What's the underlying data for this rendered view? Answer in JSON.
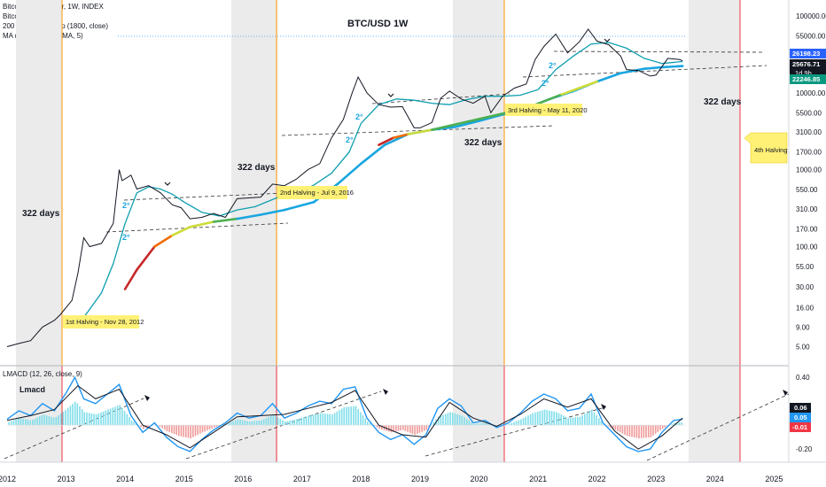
{
  "legend": {
    "line1": "Bitcoin / U.S. Dollar, 1W, INDEX",
    "line2": "Bitcoin Halvings",
    "line3": "200 Week Heatmap (1800, close)",
    "line4": "MA (50, close, 0, SMA, 5)"
  },
  "chart_data": [
    {
      "type": "line",
      "title": "BTC/USD 1W",
      "scale": "log",
      "y_ticks": [
        "100000.00",
        "55000.00",
        "31000.00",
        "17000.00",
        "10000.00",
        "5500.00",
        "3100.00",
        "1700.00",
        "1000.00",
        "550.00",
        "310.00",
        "170.00",
        "100.00",
        "55.00",
        "30.00",
        "16.00",
        "9.00",
        "5.00"
      ],
      "x_ticks": [
        "2012",
        "2013",
        "2014",
        "2015",
        "2016",
        "2017",
        "2018",
        "2019",
        "2020",
        "2021",
        "2022",
        "2023",
        "2024",
        "2025"
      ],
      "ylim": [
        3.5,
        130000
      ],
      "xlim": [
        2012.0,
        2025.1
      ],
      "price_labels": [
        {
          "value": "26198.23",
          "color": "#2962ff"
        },
        {
          "value": "25676.71",
          "color": "#ffffff"
        },
        {
          "value": "1d 9h",
          "color": "#ffffff"
        },
        {
          "value": "22246.85",
          "color": "#089981"
        }
      ],
      "series": [
        {
          "x": [
            2012.0,
            2012.2,
            2012.4,
            2012.6,
            2012.8,
            2012.9,
            2013.1,
            2013.2,
            2013.3,
            2013.4,
            2013.6,
            2013.8,
            2013.9,
            2013.95,
            2014.1,
            2014.2,
            2014.4,
            2014.6,
            2014.8,
            2014.95,
            2015.1,
            2015.3,
            2015.5,
            2015.7,
            2015.9,
            2016.1,
            2016.3,
            2016.5,
            2016.7,
            2016.9,
            2017.1,
            2017.3,
            2017.5,
            2017.7,
            2017.85,
            2017.95,
            2018.1,
            2018.3,
            2018.5,
            2018.7,
            2018.9,
            2019.0,
            2019.2,
            2019.35,
            2019.5,
            2019.7,
            2019.9,
            2020.1,
            2020.2,
            2020.4,
            2020.6,
            2020.8,
            2020.95,
            2021.1,
            2021.3,
            2021.5,
            2021.7,
            2021.85,
            2022.0,
            2022.2,
            2022.4,
            2022.5,
            2022.7,
            2022.9,
            2023.0,
            2023.2,
            2023.4,
            2023.45
          ],
          "values": [
            5,
            5.5,
            6,
            9,
            11,
            13,
            20,
            45,
            130,
            100,
            110,
            200,
            1000,
            720,
            850,
            560,
            620,
            500,
            350,
            320,
            230,
            240,
            270,
            240,
            420,
            430,
            440,
            650,
            620,
            750,
            1000,
            1200,
            2600,
            4500,
            10000,
            16000,
            10000,
            7000,
            6500,
            6600,
            3500,
            3500,
            4100,
            8500,
            10500,
            8300,
            7300,
            9000,
            5500,
            9000,
            11500,
            13000,
            27000,
            40000,
            58000,
            33000,
            46000,
            67000,
            47000,
            42000,
            30000,
            20000,
            19500,
            16500,
            17000,
            28000,
            27000,
            26000
          ]
        },
        {
          "name": "MA (50, close, 0, SMA, 5)",
          "x": [
            2013.0,
            2013.3,
            2013.6,
            2013.8,
            2014.0,
            2014.2,
            2014.4,
            2014.6,
            2014.8,
            2015.0,
            2015.3,
            2015.6,
            2015.9,
            2016.2,
            2016.6,
            2016.9,
            2017.2,
            2017.5,
            2017.8,
            2018.0,
            2018.3,
            2018.6,
            2018.9,
            2019.2,
            2019.5,
            2019.8,
            2020.1,
            2020.4,
            2020.7,
            2021.0,
            2021.3,
            2021.6,
            2021.9,
            2022.2,
            2022.5,
            2022.8,
            2023.1,
            2023.45
          ],
          "values": [
            9,
            12,
            25,
            60,
            200,
            500,
            600,
            560,
            480,
            380,
            280,
            250,
            300,
            330,
            440,
            500,
            630,
            900,
            1700,
            4000,
            7000,
            8300,
            8000,
            7300,
            7000,
            8200,
            9000,
            9000,
            9300,
            11000,
            20000,
            30000,
            43000,
            45000,
            38000,
            28000,
            24000,
            25500
          ]
        },
        {
          "name": "200 Week Heatmap (1800, close)",
          "x": [
            2014.0,
            2014.2,
            2014.5,
            2014.8,
            2015.1,
            2015.5,
            2015.9,
            2016.3,
            2016.7,
            2017.2,
            2017.6,
            2018.0,
            2018.4,
            2018.8,
            2019.2,
            2019.6,
            2020.0,
            2020.4,
            2020.8,
            2021.2,
            2021.6,
            2022.0,
            2022.4,
            2022.8,
            2023.1,
            2023.45
          ],
          "values": [
            28,
            50,
            100,
            140,
            180,
            210,
            230,
            260,
            300,
            380,
            650,
            1200,
            2100,
            2900,
            3300,
            3600,
            4300,
            5200,
            6300,
            8300,
            10500,
            14000,
            18000,
            20500,
            21500,
            22250
          ]
        }
      ]
    },
    {
      "type": "line",
      "title": "Lmacd",
      "legend": "LMACD (12, 26, close, 9)",
      "y_ticks": [
        "0.40",
        "0.20",
        "0.06",
        "0.05",
        "-0.01",
        "-0.20"
      ],
      "ylim": [
        -0.28,
        0.46
      ],
      "value_labels": [
        {
          "value": "0.06",
          "color": "#131722"
        },
        {
          "value": "0.05",
          "color": "#2196f3"
        },
        {
          "value": "-0.01",
          "color": "#f23645"
        }
      ],
      "series": [
        {
          "name": "LMACD",
          "x": [
            2012.0,
            2012.2,
            2012.4,
            2012.6,
            2012.8,
            2013.0,
            2013.15,
            2013.3,
            2013.5,
            2013.7,
            2013.9,
            2014.1,
            2014.3,
            2014.5,
            2014.7,
            2014.9,
            2015.1,
            2015.3,
            2015.5,
            2015.7,
            2015.9,
            2016.1,
            2016.3,
            2016.5,
            2016.7,
            2016.9,
            2017.1,
            2017.3,
            2017.5,
            2017.7,
            2017.9,
            2018.1,
            2018.3,
            2018.5,
            2018.7,
            2018.9,
            2019.1,
            2019.3,
            2019.5,
            2019.7,
            2019.9,
            2020.1,
            2020.3,
            2020.5,
            2020.7,
            2020.9,
            2021.1,
            2021.3,
            2021.5,
            2021.7,
            2021.9,
            2022.1,
            2022.3,
            2022.5,
            2022.7,
            2022.9,
            2023.1,
            2023.3,
            2023.45
          ],
          "values": [
            0.05,
            0.12,
            0.08,
            0.18,
            0.12,
            0.27,
            0.4,
            0.22,
            0.18,
            0.26,
            0.34,
            0.08,
            -0.06,
            0.02,
            -0.1,
            -0.18,
            -0.22,
            -0.12,
            -0.04,
            0.02,
            0.1,
            0.06,
            0.08,
            0.18,
            0.06,
            0.1,
            0.16,
            0.2,
            0.18,
            0.3,
            0.32,
            0.06,
            -0.06,
            -0.12,
            -0.08,
            -0.16,
            -0.08,
            0.14,
            0.22,
            0.16,
            0.02,
            0.04,
            -0.02,
            0.02,
            0.1,
            0.2,
            0.26,
            0.22,
            0.12,
            0.14,
            0.26,
            0.02,
            -0.08,
            -0.18,
            -0.22,
            -0.2,
            -0.06,
            0.04,
            0.05
          ]
        },
        {
          "name": "Signal",
          "x": [
            2012.0,
            2012.4,
            2012.8,
            2013.2,
            2013.5,
            2013.9,
            2014.3,
            2014.7,
            2015.1,
            2015.5,
            2015.9,
            2016.3,
            2016.7,
            2017.1,
            2017.5,
            2017.9,
            2018.3,
            2018.7,
            2019.1,
            2019.5,
            2019.9,
            2020.3,
            2020.7,
            2021.1,
            2021.5,
            2021.9,
            2022.3,
            2022.7,
            2023.1,
            2023.45
          ],
          "values": [
            0.04,
            0.08,
            0.13,
            0.33,
            0.22,
            0.3,
            0.0,
            -0.08,
            -0.19,
            -0.06,
            0.07,
            0.08,
            0.09,
            0.14,
            0.19,
            0.29,
            0.0,
            -0.08,
            -0.1,
            0.19,
            0.06,
            -0.01,
            0.09,
            0.22,
            0.15,
            0.22,
            -0.05,
            -0.2,
            -0.09,
            0.06
          ]
        }
      ]
    }
  ],
  "annotations": {
    "days_1": "322 days",
    "days_2": "322 days",
    "days_3": "322 days",
    "days_4": "322 days",
    "halving_1": "1st Halving - Nov 28, 2012",
    "halving_2": "2nd Halving - Jul 9, 2016",
    "halving_3": "3rd Halving - May 11, 2020",
    "halving_4": "4th Halving",
    "two_deg": "2°"
  },
  "colors": {
    "ma": "#0f9fb0",
    "heatmap_main": "#19a6e0",
    "heatmap_low": "#c62828",
    "macd": "#2196f3",
    "signal": "#131722",
    "halving_line_1": "#ff9800",
    "halving_line_2": "#f23645",
    "highlight": "#fff176",
    "band": "#ebebeb"
  }
}
